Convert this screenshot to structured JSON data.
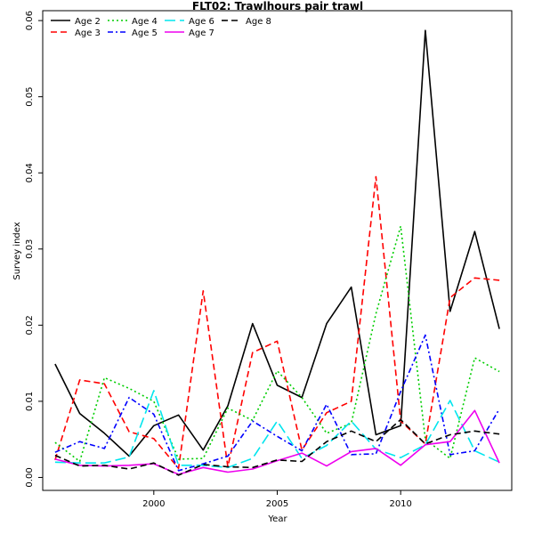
{
  "chart_data": {
    "type": "line",
    "title": "FLT02: Trawlhours pair trawl",
    "xlabel": "Year",
    "ylabel": "Survey index",
    "xlim": [
      1995.5,
      2014.5
    ],
    "ylim": [
      -0.0017,
      0.0613
    ],
    "x_ticks": [
      2000,
      2005,
      2010
    ],
    "y_ticks": [
      0.0,
      0.01,
      0.02,
      0.03,
      0.04,
      0.05,
      0.06
    ],
    "y_tick_labels": [
      "0.00",
      "0.01",
      "0.02",
      "0.03",
      "0.04",
      "0.05",
      "0.06"
    ],
    "legend_position": "top-left",
    "grid": false,
    "x": [
      1996,
      1997,
      1998,
      1999,
      2000,
      2001,
      2002,
      2003,
      2004,
      2005,
      2006,
      2007,
      2008,
      2009,
      2010,
      2011,
      2012,
      2013,
      2014
    ],
    "series": [
      {
        "name": "Age 2",
        "color": "#000000",
        "dash": "solid",
        "values": [
          0.0149,
          0.0084,
          0.0058,
          0.0028,
          0.0068,
          0.0082,
          0.0036,
          0.0094,
          0.0202,
          0.0121,
          0.0105,
          0.0202,
          0.025,
          0.0056,
          0.0068,
          0.0587,
          0.0218,
          0.0323,
          0.0195
        ]
      },
      {
        "name": "Age 3",
        "color": "#ff0000",
        "dash": "dashed",
        "values": [
          0.0023,
          0.0128,
          0.0123,
          0.006,
          0.0051,
          0.0012,
          0.0245,
          0.0014,
          0.0164,
          0.0179,
          0.0036,
          0.0085,
          0.01,
          0.0395,
          0.0074,
          0.0044,
          0.0236,
          0.0262,
          0.0259
        ]
      },
      {
        "name": "Age 4",
        "color": "#00cd00",
        "dash": "dotted",
        "values": [
          0.0046,
          0.0021,
          0.0131,
          0.0117,
          0.01,
          0.0024,
          0.0025,
          0.0091,
          0.0075,
          0.014,
          0.0105,
          0.0058,
          0.0071,
          0.0215,
          0.033,
          0.005,
          0.0025,
          0.0157,
          0.0139
        ]
      },
      {
        "name": "Age 5",
        "color": "#0000ff",
        "dash": "dashdot",
        "values": [
          0.0033,
          0.0047,
          0.0038,
          0.0105,
          0.0083,
          0.0009,
          0.0018,
          0.0028,
          0.0074,
          0.0054,
          0.0035,
          0.0096,
          0.003,
          0.0031,
          0.0113,
          0.0187,
          0.003,
          0.0035,
          0.009
        ]
      },
      {
        "name": "Age 6",
        "color": "#00e5ee",
        "dash": "longdash",
        "values": [
          0.002,
          0.0019,
          0.0019,
          0.0027,
          0.0114,
          0.0016,
          0.0016,
          0.0013,
          0.0025,
          0.0074,
          0.0025,
          0.0042,
          0.0074,
          0.0037,
          0.0026,
          0.0043,
          0.0101,
          0.0035,
          0.002
        ]
      },
      {
        "name": "Age 7",
        "color": "#ee00ee",
        "dash": "solid",
        "values": [
          0.0024,
          0.0016,
          0.0015,
          0.0016,
          0.0018,
          0.0004,
          0.0013,
          0.0007,
          0.0011,
          0.0022,
          0.0032,
          0.0015,
          0.0034,
          0.0038,
          0.0016,
          0.0043,
          0.0047,
          0.0088,
          0.0019
        ]
      },
      {
        "name": "Age 8",
        "color": "#000000",
        "dash": "dashed",
        "values": [
          0.0029,
          0.0015,
          0.0016,
          0.0011,
          0.0019,
          0.0003,
          0.0017,
          0.0014,
          0.0013,
          0.0023,
          0.0021,
          0.0047,
          0.0061,
          0.0047,
          0.0076,
          0.0044,
          0.0056,
          0.0061,
          0.0057
        ]
      }
    ]
  }
}
